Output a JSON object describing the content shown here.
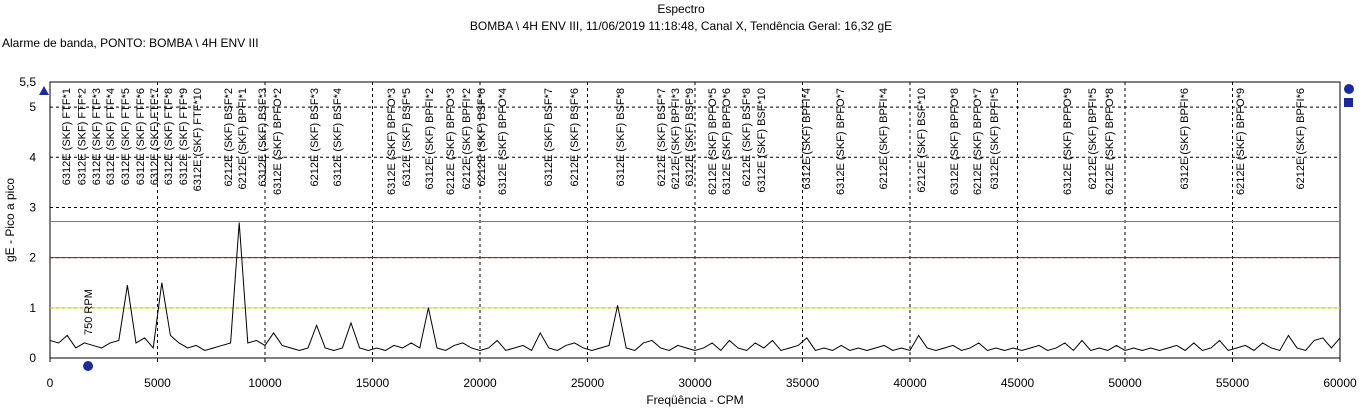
{
  "chart_data": {
    "type": "line",
    "title": "Espectro",
    "subtitle": "BOMBA \\ 4H ENV III, 11/06/2019 11:18:48, Canal X, Tendência Geral: 16,32 gE",
    "caption": "Alarme de banda, PONTO: BOMBA \\ 4H ENV III",
    "xlabel": "Freqüência - CPM",
    "ylabel": "gE - Pico a pico",
    "xlim": [
      0,
      60000
    ],
    "xticks": [
      0,
      5000,
      10000,
      15000,
      20000,
      25000,
      30000,
      35000,
      40000,
      45000,
      50000,
      55000,
      60000
    ],
    "ylim": [
      0,
      5.5
    ],
    "yticks": [
      0,
      1,
      2,
      3,
      4,
      5,
      {
        "value": 5.5,
        "label": "5,5"
      }
    ],
    "grid": true,
    "reference_lines": [
      {
        "value": 2.72,
        "color": "#00d000"
      },
      {
        "value": 2.0,
        "color": "#d00000"
      },
      {
        "value": 1.0,
        "color": "#e8e800"
      }
    ],
    "x": [
      0,
      400,
      800,
      1200,
      1600,
      2000,
      2400,
      2800,
      3200,
      3600,
      4000,
      4400,
      4800,
      5200,
      5600,
      6000,
      6400,
      6800,
      7200,
      7600,
      8000,
      8400,
      8800,
      9200,
      9600,
      10000,
      10400,
      10800,
      11200,
      11600,
      12000,
      12400,
      12800,
      13200,
      13600,
      14000,
      14400,
      14800,
      15200,
      15600,
      16000,
      16400,
      16800,
      17200,
      17600,
      18000,
      18400,
      18800,
      19200,
      19600,
      20000,
      20400,
      20800,
      21200,
      21600,
      22000,
      22400,
      22800,
      23200,
      23600,
      24000,
      24400,
      24800,
      25200,
      25600,
      26000,
      26400,
      26800,
      27200,
      27600,
      28000,
      28400,
      28800,
      29200,
      29600,
      30000,
      30400,
      30800,
      31200,
      31600,
      32000,
      32400,
      32800,
      33200,
      33600,
      34000,
      34400,
      34800,
      35200,
      35600,
      36000,
      36400,
      36800,
      37200,
      37600,
      38000,
      38400,
      38800,
      39200,
      39600,
      40000,
      40400,
      40800,
      41200,
      41600,
      42000,
      42400,
      42800,
      43200,
      43600,
      44000,
      44400,
      44800,
      45200,
      45600,
      46000,
      46400,
      46800,
      47200,
      47600,
      48000,
      48400,
      48800,
      49200,
      49600,
      50000,
      50400,
      50800,
      51200,
      51600,
      52000,
      52400,
      52800,
      53200,
      53600,
      54000,
      54400,
      54800,
      55200,
      55600,
      56000,
      56400,
      56800,
      57200,
      57600,
      58000,
      58400,
      58800,
      59200,
      59600,
      60000
    ],
    "series": [
      {
        "color": "#000000",
        "values": [
          0.35,
          0.3,
          0.45,
          0.2,
          0.3,
          0.25,
          0.2,
          0.3,
          0.35,
          1.45,
          0.3,
          0.4,
          0.2,
          1.5,
          0.45,
          0.3,
          0.2,
          0.25,
          0.15,
          0.2,
          0.25,
          0.3,
          2.7,
          0.3,
          0.35,
          0.25,
          0.5,
          0.25,
          0.2,
          0.15,
          0.2,
          0.65,
          0.2,
          0.15,
          0.2,
          0.7,
          0.2,
          0.15,
          0.2,
          0.15,
          0.25,
          0.2,
          0.3,
          0.2,
          1.0,
          0.2,
          0.15,
          0.25,
          0.3,
          0.2,
          0.15,
          0.2,
          0.35,
          0.15,
          0.2,
          0.25,
          0.15,
          0.5,
          0.2,
          0.15,
          0.25,
          0.3,
          0.2,
          0.15,
          0.2,
          0.25,
          1.05,
          0.2,
          0.15,
          0.3,
          0.35,
          0.2,
          0.15,
          0.25,
          0.2,
          0.15,
          0.2,
          0.3,
          0.15,
          0.35,
          0.2,
          0.15,
          0.3,
          0.2,
          0.35,
          0.15,
          0.2,
          0.25,
          0.4,
          0.15,
          0.2,
          0.15,
          0.25,
          0.15,
          0.2,
          0.15,
          0.2,
          0.25,
          0.15,
          0.2,
          0.15,
          0.45,
          0.2,
          0.15,
          0.2,
          0.25,
          0.15,
          0.2,
          0.3,
          0.15,
          0.2,
          0.15,
          0.2,
          0.15,
          0.2,
          0.25,
          0.15,
          0.2,
          0.3,
          0.15,
          0.35,
          0.15,
          0.2,
          0.15,
          0.25,
          0.15,
          0.2,
          0.15,
          0.2,
          0.15,
          0.2,
          0.25,
          0.15,
          0.3,
          0.15,
          0.2,
          0.35,
          0.15,
          0.2,
          0.25,
          0.15,
          0.3,
          0.2,
          0.15,
          0.45,
          0.2,
          0.15,
          0.35,
          0.4,
          0.2,
          0.4
        ]
      }
    ],
    "marker_label": {
      "text": "750 RPM",
      "x": 1770
    },
    "annotations": [
      {
        "text": "6312E (SKF) FTF*1",
        "x": 744
      },
      {
        "text": "6312E (SKF) FTF*2",
        "x": 1465
      },
      {
        "text": "6312E (SKF) FTF*3",
        "x": 2140
      },
      {
        "text": "6312E (SKF) FTF*4",
        "x": 2790
      },
      {
        "text": "6312E (SKF) FTF*5",
        "x": 3488
      },
      {
        "text": "6312E (SKF) FTF*6",
        "x": 4186
      },
      {
        "text": "6312E (SKF) FTF*7",
        "x": 4837
      },
      {
        "text": "6312E (SKF) FTF*8",
        "x": 5488
      },
      {
        "text": "6312E (SKF) FTF*9",
        "x": 6186
      },
      {
        "text": "6312E (SKF) FTF*10",
        "x": 6837
      },
      {
        "text": "6212E (SKF) BSF*2",
        "x": 8279
      },
      {
        "text": "6212E (SKF) BPFI*1",
        "x": 8930
      },
      {
        "text": "6312E (SKF) BSF*3",
        "x": 9860
      },
      {
        "text": "6312E (SKF) BPFO*2",
        "x": 10558
      },
      {
        "text": "6212E (SKF) BSF*3",
        "x": 12279
      },
      {
        "text": "6312E (SKF) BSF*4",
        "x": 13349
      },
      {
        "text": "6312E (SKF) BPFO*3",
        "x": 15860
      },
      {
        "text": "6312E (SKF) BSF*5",
        "x": 16558
      },
      {
        "text": "6312E (SKF) BPFI*2",
        "x": 17628
      },
      {
        "text": "6212E (SKF) BPFO*3",
        "x": 18605
      },
      {
        "text": "6212E (SKF) BPFI*2",
        "x": 19349
      },
      {
        "text": "6212E (SKF) BSF*6",
        "x": 20046
      },
      {
        "text": "6312E (SKF) BPFO*4",
        "x": 21023
      },
      {
        "text": "6312E (SKF) BSF*7",
        "x": 23163
      },
      {
        "text": "6212E (SKF) BSF*6",
        "x": 24372
      },
      {
        "text": "6312E (SKF) BSF*8",
        "x": 26512
      },
      {
        "text": "6212E (SKF) BSF*7",
        "x": 28419
      },
      {
        "text": "6212E (SKF) BPFI*3",
        "x": 29070
      },
      {
        "text": "6312E (SKF) BSF*9",
        "x": 29721
      },
      {
        "text": "6212E (SKF) BPFO*5",
        "x": 30790
      },
      {
        "text": "6312E (SKF) BPFO*6",
        "x": 31442
      },
      {
        "text": "6212E (SKF) BSF*8",
        "x": 32372
      },
      {
        "text": "6312E (SKF) BSF*10",
        "x": 33070
      },
      {
        "text": "6312E (SKF) BPFI*4",
        "x": 35163
      },
      {
        "text": "6312E (SKF) BPFO*7",
        "x": 36744
      },
      {
        "text": "6212E (SKF) BPFI*4",
        "x": 38744
      },
      {
        "text": "6212E (SKF) BSF*10",
        "x": 40512
      },
      {
        "text": "6312E (SKF) BPFO*8",
        "x": 42046
      },
      {
        "text": "6212E (SKF) BPFO*7",
        "x": 43116
      },
      {
        "text": "6312E (SKF) BPFI*5",
        "x": 43907
      },
      {
        "text": "6312E (SKF) BPFO*9",
        "x": 47302
      },
      {
        "text": "6212E (SKF) BPFI*5",
        "x": 48465
      },
      {
        "text": "6212E (SKF) BPFO*8",
        "x": 49256
      },
      {
        "text": "6312E (SKF) BPFI*6",
        "x": 52744
      },
      {
        "text": "6212E (SKF) BPFO*9",
        "x": 55349
      },
      {
        "text": "6212E (SKF) BPFI*6",
        "x": 58140
      }
    ]
  }
}
